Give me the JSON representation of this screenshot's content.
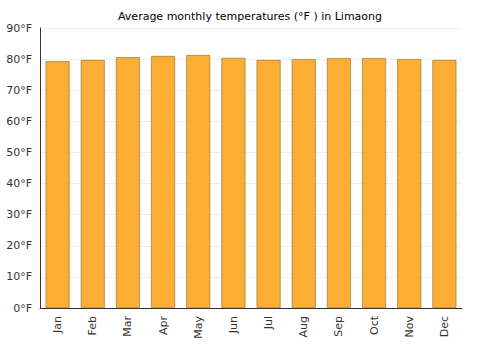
{
  "chart_data": {
    "type": "bar",
    "title": "Average monthly temperatures (°F ) in Limaong",
    "categories": [
      "Jan",
      "Feb",
      "Mar",
      "Apr",
      "May",
      "Jun",
      "Jul",
      "Aug",
      "Sep",
      "Oct",
      "Nov",
      "Dec"
    ],
    "values": [
      79.3,
      79.7,
      80.6,
      81.0,
      81.3,
      80.4,
      79.7,
      80.0,
      80.3,
      80.3,
      80.0,
      79.7
    ],
    "color": "#fbae33",
    "ylim": [
      0,
      90
    ],
    "yticks": [
      {
        "value": 0,
        "label": "0°F"
      },
      {
        "value": 10,
        "label": "10°F"
      },
      {
        "value": 20,
        "label": "20°F"
      },
      {
        "value": 30,
        "label": "30°F"
      },
      {
        "value": 40,
        "label": "40°F"
      },
      {
        "value": 50,
        "label": "50°F"
      },
      {
        "value": 60,
        "label": "60°F"
      },
      {
        "value": 70,
        "label": "70°F"
      },
      {
        "value": 80,
        "label": "80°F"
      },
      {
        "value": 90,
        "label": "90°F"
      }
    ],
    "grid": true
  }
}
